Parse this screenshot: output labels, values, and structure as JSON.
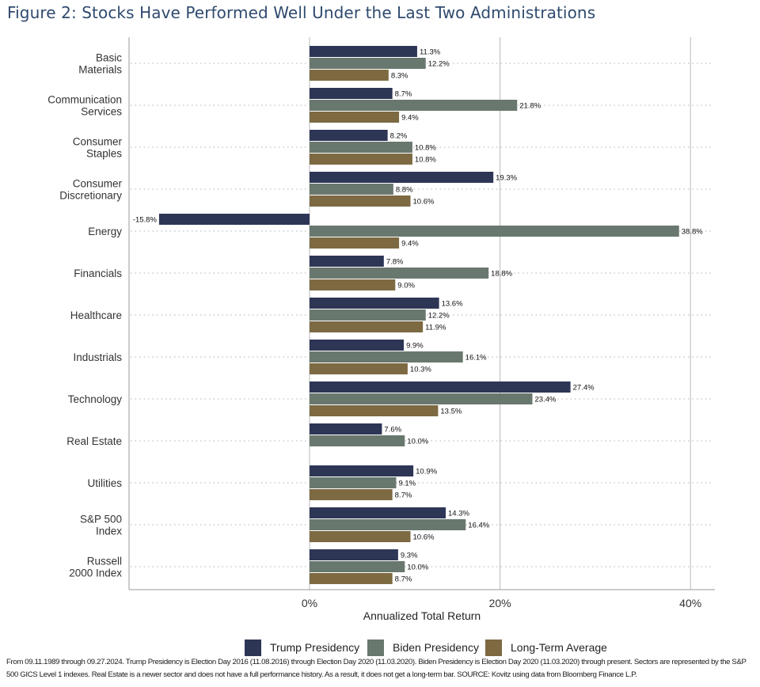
{
  "title": "Figure 2: Stocks Have Performed Well Under the Last Two Administrations",
  "chart_data": {
    "type": "bar",
    "orientation": "horizontal",
    "title": "Figure 2: Stocks Have Performed Well Under the Last Two Administrations",
    "xlabel": "Annualized Total Return",
    "ylabel": "",
    "xlim": [
      -19,
      42.5
    ],
    "xticks": [
      0,
      20,
      40
    ],
    "xtick_labels": [
      "0%",
      "20%",
      "40%"
    ],
    "grid": true,
    "legend_position": "bottom",
    "categories": [
      [
        "Basic",
        "Materials"
      ],
      [
        "Communication",
        "Services"
      ],
      [
        "Consumer",
        "Staples"
      ],
      [
        "Consumer",
        "Discretionary"
      ],
      [
        "Energy"
      ],
      [
        "Financials"
      ],
      [
        "Healthcare"
      ],
      [
        "Industrials"
      ],
      [
        "Technology"
      ],
      [
        "Real Estate"
      ],
      [
        "Utilities"
      ],
      [
        "S&P 500",
        "Index"
      ],
      [
        "Russell",
        "2000 Index"
      ]
    ],
    "series": [
      {
        "name": "Trump Presidency",
        "color": "#2e3656",
        "values": [
          11.3,
          8.7,
          8.2,
          19.3,
          -15.8,
          7.8,
          13.6,
          9.9,
          27.4,
          7.6,
          10.9,
          14.3,
          9.3
        ],
        "labels": [
          "11.3%",
          "8.7%",
          "8.2%",
          "19.3%",
          "-15.8%",
          "7.8%",
          "13.6%",
          "9.9%",
          "27.4%",
          "7.6%",
          "10.9%",
          "14.3%",
          "9.3%"
        ]
      },
      {
        "name": "Biden Presidency",
        "color": "#69786e",
        "values": [
          12.2,
          21.8,
          10.8,
          8.8,
          38.8,
          18.8,
          12.2,
          16.1,
          23.4,
          10.0,
          9.1,
          16.4,
          10.0
        ],
        "labels": [
          "12.2%",
          "21.8%",
          "10.8%",
          "8.8%",
          "38.8%",
          "18.8%",
          "12.2%",
          "16.1%",
          "23.4%",
          "10.0%",
          "9.1%",
          "16.4%",
          "10.0%"
        ]
      },
      {
        "name": "Long-Term Average",
        "color": "#7d6a42",
        "values": [
          8.3,
          9.4,
          10.8,
          10.6,
          9.4,
          9.0,
          11.9,
          10.3,
          13.5,
          null,
          8.7,
          10.6,
          8.7
        ],
        "labels": [
          "8.3%",
          "9.4%",
          "10.8%",
          "10.6%",
          "9.4%",
          "9.0%",
          "11.9%",
          "10.3%",
          "13.5%",
          null,
          "8.7%",
          "10.6%",
          "8.7%"
        ]
      }
    ]
  },
  "footnote": "From 09.11.1989 through 09.27.2024. Trump Presidency is Election Day 2016 (11.08.2016) through Election Day 2020 (11.03.2020). Biden Presidency is Election Day 2020 (11.03.2020) through present. Sectors are represented by the S&P 500 GICS Level 1 indexes. Real Estate is a newer sector and does not have a full performance history. As a result, it does not get a long-term bar. SOURCE: Kovitz using data from Bloomberg Finance L.P."
}
